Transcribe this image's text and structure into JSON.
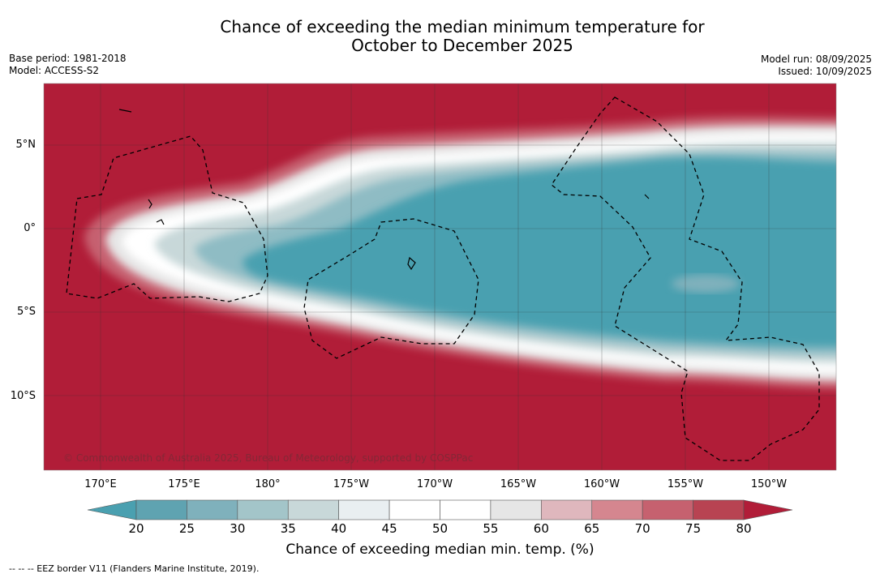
{
  "title_line1": "Chance of exceeding the median minimum temperature for",
  "title_line2": "October to December 2025",
  "meta_left": {
    "base_period": "Base period: 1981-2018",
    "model": "Model: ACCESS-S2"
  },
  "meta_right": {
    "model_run": "Model run: 08/09/2025",
    "issued": "Issued: 10/09/2025"
  },
  "latitudes": [
    "5°N",
    "0°",
    "5°S",
    "10°S"
  ],
  "longitudes": [
    "170°E",
    "175°E",
    "180°",
    "175°W",
    "170°W",
    "165°W",
    "160°W",
    "155°W",
    "150°W"
  ],
  "copyright": "© Commonwealth of Australia 2025, Bureau of Meteorology, supported by COSPPac",
  "colorbar": {
    "ticks": [
      "20",
      "25",
      "30",
      "35",
      "40",
      "45",
      "50",
      "55",
      "60",
      "65",
      "70",
      "75",
      "80"
    ],
    "colors": [
      "#5fa3b1",
      "#7fb1bc",
      "#a3c5c9",
      "#c8d8d9",
      "#e9eff1",
      "#ffffff",
      "#ffffff",
      "#e6e6e6",
      "#dfb7bd",
      "#d5868f",
      "#c6616f",
      "#b84352"
    ],
    "under_color": "#4aa0b0",
    "over_color": "#b11d38",
    "label": "Chance of exceeding median min. temp. (%)"
  },
  "colors": {
    "warm": "#b11d38",
    "cool": "#4aa0b0"
  },
  "footnote": "-- -- -- EEZ border V11 (Flanders Marine Institute, 2019)."
}
